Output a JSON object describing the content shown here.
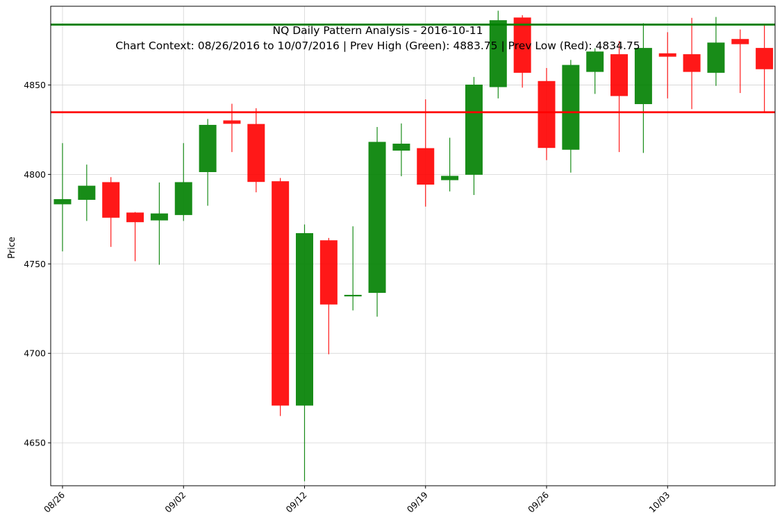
{
  "chart_data": {
    "type": "candlestick",
    "title": "NQ Daily Pattern Analysis - 2016-10-11",
    "subtitle": "Chart Context: 08/26/2016 to 10/07/2016 | Prev High (Green): 4883.75 | Prev Low (Red): 4834.75",
    "xlabel": "",
    "ylabel": "Price",
    "ylim": [
      4626,
      4894
    ],
    "yticks": [
      4650,
      4700,
      4750,
      4800,
      4850
    ],
    "xticks": [
      "08/26",
      "09/02",
      "09/12",
      "09/19",
      "09/26",
      "10/03"
    ],
    "xtick_positions": [
      0,
      5,
      10,
      15,
      20,
      25
    ],
    "grid": true,
    "colors": {
      "up": "#008000",
      "down": "#ff0000",
      "prev_high": "#008000",
      "prev_low": "#ff0000",
      "grid": "#d3d3d3"
    },
    "reference_lines": [
      {
        "label": "Prev High",
        "value": 4883.75,
        "color": "#008000"
      },
      {
        "label": "Prev Low",
        "value": 4834.75,
        "color": "#ff0000"
      }
    ],
    "candles": [
      {
        "date": "08/26",
        "open": 4783.5,
        "high": 4817.5,
        "low": 4757.0,
        "close": 4786.0
      },
      {
        "date": "08/29",
        "open": 4786.0,
        "high": 4805.5,
        "low": 4774.0,
        "close": 4793.5
      },
      {
        "date": "08/30",
        "open": 4795.5,
        "high": 4798.5,
        "low": 4759.5,
        "close": 4776.0
      },
      {
        "date": "08/31",
        "open": 4778.5,
        "high": 4779.0,
        "low": 4751.5,
        "close": 4773.5
      },
      {
        "date": "09/01",
        "open": 4774.5,
        "high": 4795.5,
        "low": 4749.5,
        "close": 4778.0
      },
      {
        "date": "09/02",
        "open": 4777.5,
        "high": 4817.5,
        "low": 4774.0,
        "close": 4795.5
      },
      {
        "date": "09/06",
        "open": 4801.5,
        "high": 4831.0,
        "low": 4782.5,
        "close": 4827.5
      },
      {
        "date": "09/07",
        "open": 4830.0,
        "high": 4839.5,
        "low": 4812.5,
        "close": 4828.5
      },
      {
        "date": "09/08",
        "open": 4828.0,
        "high": 4837.0,
        "low": 4790.0,
        "close": 4796.0
      },
      {
        "date": "09/09",
        "open": 4796.0,
        "high": 4798.0,
        "low": 4665.0,
        "close": 4671.0
      },
      {
        "date": "09/12",
        "open": 4671.0,
        "high": 4772.0,
        "low": 4628.5,
        "close": 4767.0
      },
      {
        "date": "09/13",
        "open": 4763.0,
        "high": 4764.5,
        "low": 4699.5,
        "close": 4727.5
      },
      {
        "date": "09/14",
        "open": 4732.5,
        "high": 4771.0,
        "low": 4724.0,
        "close": 4732.5
      },
      {
        "date": "09/15",
        "open": 4734.0,
        "high": 4826.5,
        "low": 4720.5,
        "close": 4818.0
      },
      {
        "date": "09/16",
        "open": 4813.5,
        "high": 4828.5,
        "low": 4799.0,
        "close": 4817.0
      },
      {
        "date": "09/19",
        "open": 4814.5,
        "high": 4842.0,
        "low": 4782.0,
        "close": 4794.5
      },
      {
        "date": "09/20",
        "open": 4797.0,
        "high": 4820.5,
        "low": 4790.5,
        "close": 4799.0
      },
      {
        "date": "09/21",
        "open": 4800.0,
        "high": 4854.5,
        "low": 4788.5,
        "close": 4850.0
      },
      {
        "date": "09/22",
        "open": 4849.0,
        "high": 4891.5,
        "low": 4842.5,
        "close": 4886.0
      },
      {
        "date": "09/23",
        "open": 4887.5,
        "high": 4889.0,
        "low": 4848.5,
        "close": 4857.0
      },
      {
        "date": "09/26",
        "open": 4852.0,
        "high": 4859.5,
        "low": 4808.0,
        "close": 4815.0
      },
      {
        "date": "09/27",
        "open": 4814.0,
        "high": 4864.0,
        "low": 4801.0,
        "close": 4861.0
      },
      {
        "date": "09/28",
        "open": 4857.5,
        "high": 4870.5,
        "low": 4845.0,
        "close": 4868.5
      },
      {
        "date": "09/29",
        "open": 4867.0,
        "high": 4874.5,
        "low": 4812.5,
        "close": 4844.0
      },
      {
        "date": "09/30",
        "open": 4839.5,
        "high": 4884.5,
        "low": 4812.0,
        "close": 4870.5
      },
      {
        "date": "10/03",
        "open": 4867.5,
        "high": 4879.5,
        "low": 4842.5,
        "close": 4866.0
      },
      {
        "date": "10/04",
        "open": 4867.0,
        "high": 4887.5,
        "low": 4836.5,
        "close": 4857.5
      },
      {
        "date": "10/05",
        "open": 4857.0,
        "high": 4888.0,
        "low": 4849.5,
        "close": 4873.5
      },
      {
        "date": "10/06",
        "open": 4875.5,
        "high": 4881.0,
        "low": 4845.5,
        "close": 4873.0
      },
      {
        "date": "10/07",
        "open": 4870.5,
        "high": 4883.5,
        "low": 4835.0,
        "close": 4859.0
      }
    ]
  }
}
